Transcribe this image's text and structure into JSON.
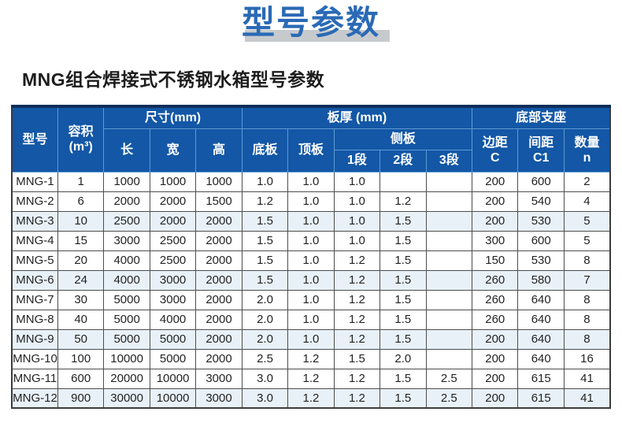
{
  "page": {
    "title": "型号参数",
    "subtitle": "MNG组合焊接式不锈钢水箱型号参数"
  },
  "colors": {
    "title_blue": "#2a6ab5",
    "title_shadow_gray": "#c7cacd",
    "header_bg": "#1357a6",
    "header_divider": "#5e9bd3",
    "row_highlight": "#e8f1f8",
    "top_border_navy": "#0c2d59"
  },
  "table": {
    "header": {
      "model": "型号",
      "volume_line1": "容积",
      "volume_line2": "(m³)",
      "size_group": "尺寸(mm)",
      "length": "长",
      "width": "宽",
      "height": "高",
      "thickness_group": "板厚 (mm)",
      "bottom_plate": "底板",
      "top_plate": "顶板",
      "side_plate_group": "侧板",
      "seg1": "1段",
      "seg2": "2段",
      "seg3": "3段",
      "support_group": "底部支座",
      "edge_line1": "边距",
      "edge_line2": "C",
      "spacing_line1": "间距",
      "spacing_line2": "C1",
      "qty_line1": "数量",
      "qty_line2": "n"
    },
    "columns": [
      {
        "key": "model"
      },
      {
        "key": "volume"
      },
      {
        "key": "length"
      },
      {
        "key": "width"
      },
      {
        "key": "height"
      },
      {
        "key": "bottom_plate"
      },
      {
        "key": "top_plate"
      },
      {
        "key": "seg1"
      },
      {
        "key": "seg2"
      },
      {
        "key": "seg3"
      },
      {
        "key": "edge_c"
      },
      {
        "key": "spacing_c1"
      },
      {
        "key": "qty_n"
      }
    ],
    "rows": [
      {
        "model": "MNG-1",
        "volume": "1",
        "length": "1000",
        "width": "1000",
        "height": "1000",
        "bottom_plate": "1.0",
        "top_plate": "1.0",
        "seg1": "1.0",
        "seg2": "",
        "seg3": "",
        "edge_c": "200",
        "spacing_c1": "600",
        "qty_n": "2",
        "tinted": false
      },
      {
        "model": "MNG-2",
        "volume": "6",
        "length": "2000",
        "width": "2000",
        "height": "1500",
        "bottom_plate": "1.2",
        "top_plate": "1.0",
        "seg1": "1.0",
        "seg2": "1.2",
        "seg3": "",
        "edge_c": "200",
        "spacing_c1": "540",
        "qty_n": "4",
        "tinted": false
      },
      {
        "model": "MNG-3",
        "volume": "10",
        "length": "2500",
        "width": "2000",
        "height": "2000",
        "bottom_plate": "1.5",
        "top_plate": "1.0",
        "seg1": "1.0",
        "seg2": "1.5",
        "seg3": "",
        "edge_c": "200",
        "spacing_c1": "530",
        "qty_n": "5",
        "tinted": true
      },
      {
        "model": "MNG-4",
        "volume": "15",
        "length": "3000",
        "width": "2500",
        "height": "2000",
        "bottom_plate": "1.5",
        "top_plate": "1.0",
        "seg1": "1.0",
        "seg2": "1.5",
        "seg3": "",
        "edge_c": "300",
        "spacing_c1": "600",
        "qty_n": "5",
        "tinted": false
      },
      {
        "model": "MNG-5",
        "volume": "20",
        "length": "4000",
        "width": "2500",
        "height": "2000",
        "bottom_plate": "1.5",
        "top_plate": "1.0",
        "seg1": "1.2",
        "seg2": "1.5",
        "seg3": "",
        "edge_c": "150",
        "spacing_c1": "530",
        "qty_n": "8",
        "tinted": false
      },
      {
        "model": "MNG-6",
        "volume": "24",
        "length": "4000",
        "width": "3000",
        "height": "2000",
        "bottom_plate": "1.5",
        "top_plate": "1.0",
        "seg1": "1.2",
        "seg2": "1.5",
        "seg3": "",
        "edge_c": "260",
        "spacing_c1": "580",
        "qty_n": "7",
        "tinted": true
      },
      {
        "model": "MNG-7",
        "volume": "30",
        "length": "5000",
        "width": "3000",
        "height": "2000",
        "bottom_plate": "2.0",
        "top_plate": "1.0",
        "seg1": "1.2",
        "seg2": "1.5",
        "seg3": "",
        "edge_c": "260",
        "spacing_c1": "640",
        "qty_n": "8",
        "tinted": false
      },
      {
        "model": "MNG-8",
        "volume": "40",
        "length": "5000",
        "width": "4000",
        "height": "2000",
        "bottom_plate": "2.0",
        "top_plate": "1.0",
        "seg1": "1.2",
        "seg2": "1.5",
        "seg3": "",
        "edge_c": "260",
        "spacing_c1": "640",
        "qty_n": "8",
        "tinted": false
      },
      {
        "model": "MNG-9",
        "volume": "50",
        "length": "5000",
        "width": "5000",
        "height": "2000",
        "bottom_plate": "2.0",
        "top_plate": "1.0",
        "seg1": "1.2",
        "seg2": "1.5",
        "seg3": "",
        "edge_c": "200",
        "spacing_c1": "640",
        "qty_n": "8",
        "tinted": true
      },
      {
        "model": "MNG-10",
        "volume": "100",
        "length": "10000",
        "width": "5000",
        "height": "2000",
        "bottom_plate": "2.5",
        "top_plate": "1.2",
        "seg1": "1.5",
        "seg2": "2.0",
        "seg3": "",
        "edge_c": "200",
        "spacing_c1": "640",
        "qty_n": "16",
        "tinted": false
      },
      {
        "model": "MNG-11",
        "volume": "600",
        "length": "20000",
        "width": "10000",
        "height": "3000",
        "bottom_plate": "3.0",
        "top_plate": "1.2",
        "seg1": "1.2",
        "seg2": "1.5",
        "seg3": "2.5",
        "edge_c": "200",
        "spacing_c1": "615",
        "qty_n": "41",
        "tinted": false
      },
      {
        "model": "MNG-12",
        "volume": "900",
        "length": "30000",
        "width": "10000",
        "height": "3000",
        "bottom_plate": "3.0",
        "top_plate": "1.2",
        "seg1": "1.2",
        "seg2": "1.5",
        "seg3": "2.5",
        "edge_c": "200",
        "spacing_c1": "615",
        "qty_n": "41",
        "tinted": true
      }
    ]
  }
}
